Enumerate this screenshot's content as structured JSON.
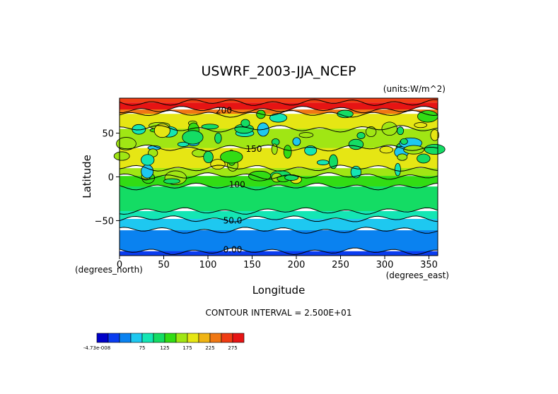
{
  "chart_data": {
    "type": "heatmap",
    "title": "USWRF_2003-JJA_NCEP",
    "units_label": "(units:W/m^2)",
    "xlabel": "Longitude",
    "ylabel": "Latitude",
    "x_unit_label": "(degrees_east)",
    "y_unit_label": "(degrees_north)",
    "xlim": [
      0,
      360
    ],
    "ylim": [
      -90,
      90
    ],
    "x_ticks": [
      {
        "value": 0,
        "label": "0"
      },
      {
        "value": 50,
        "label": "50"
      },
      {
        "value": 100,
        "label": "100"
      },
      {
        "value": 150,
        "label": "150"
      },
      {
        "value": 200,
        "label": "200"
      },
      {
        "value": 250,
        "label": "250"
      },
      {
        "value": 300,
        "label": "300"
      },
      {
        "value": 350,
        "label": "350"
      }
    ],
    "y_ticks": [
      {
        "value": 50,
        "label": "50"
      },
      {
        "value": 0,
        "label": "0"
      },
      {
        "value": -50,
        "label": "−50"
      }
    ],
    "contour_interval_text": "CONTOUR INTERVAL = 2.500E+01",
    "contour_labels": [
      {
        "text": "200",
        "lon": 118,
        "lat": 76
      },
      {
        "text": "150",
        "lon": 152,
        "lat": 32
      },
      {
        "text": "100",
        "lon": 133,
        "lat": -9
      },
      {
        "text": "50.0",
        "lon": 128,
        "lat": -50
      },
      {
        "text": "0.00",
        "lon": 128,
        "lat": -83
      }
    ],
    "zonal_bands": [
      {
        "lat_from": 90,
        "lat_to": 85,
        "value": 225
      },
      {
        "lat_from": 85,
        "lat_to": 77,
        "value": 250
      },
      {
        "lat_from": 77,
        "lat_to": 72,
        "value": 200
      },
      {
        "lat_from": 72,
        "lat_to": 55,
        "value": 150
      },
      {
        "lat_from": 55,
        "lat_to": 33,
        "value": 125
      },
      {
        "lat_from": 33,
        "lat_to": 10,
        "value": 150
      },
      {
        "lat_from": 10,
        "lat_to": 1,
        "value": 125
      },
      {
        "lat_from": 1,
        "lat_to": -11,
        "value": 100
      },
      {
        "lat_from": -11,
        "lat_to": -39,
        "value": 75
      },
      {
        "lat_from": -39,
        "lat_to": -48,
        "value": 50
      },
      {
        "lat_from": -48,
        "lat_to": -61,
        "value": 25
      },
      {
        "lat_from": -61,
        "lat_to": -85,
        "value": 0
      },
      {
        "lat_from": -85,
        "lat_to": -90,
        "value": -25
      }
    ],
    "colorbar": {
      "colors": [
        "#0000c8",
        "#0a3cf0",
        "#0a82f0",
        "#1ec8f0",
        "#14e6b4",
        "#14dc64",
        "#32dc14",
        "#a0e614",
        "#e6e614",
        "#f0b414",
        "#f07814",
        "#f03c14",
        "#e61414"
      ],
      "labels": [
        "-4.73e-008",
        "75",
        "125",
        "175",
        "225",
        "275"
      ]
    }
  }
}
